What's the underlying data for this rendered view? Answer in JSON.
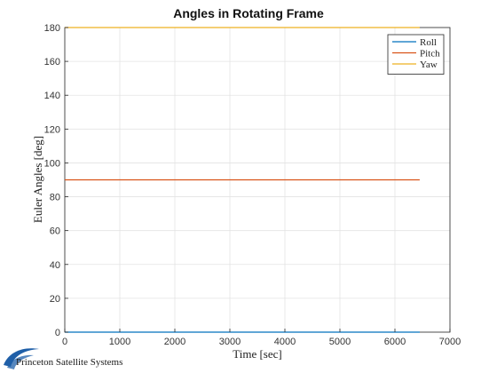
{
  "chart_data": {
    "type": "line",
    "title": "Angles in Rotating Frame",
    "xlabel": "Time [sec]",
    "ylabel": "Euler Angles [deg]",
    "xlim": [
      0,
      7000
    ],
    "ylim": [
      0,
      180
    ],
    "xticks": [
      0,
      1000,
      2000,
      3000,
      4000,
      5000,
      6000,
      7000
    ],
    "yticks": [
      0,
      20,
      40,
      60,
      80,
      100,
      120,
      140,
      160,
      180
    ],
    "grid": true,
    "legend_position": "top-right",
    "series": [
      {
        "name": "Roll",
        "color": "#0072BD",
        "x": [
          0,
          6450
        ],
        "y": [
          0,
          0
        ]
      },
      {
        "name": "Pitch",
        "color": "#D95319",
        "x": [
          0,
          6450
        ],
        "y": [
          90,
          90
        ]
      },
      {
        "name": "Yaw",
        "color": "#EDB120",
        "x": [
          0,
          6450
        ],
        "y": [
          180,
          180
        ]
      }
    ]
  },
  "logo": {
    "text": "Princeton Satellite Systems",
    "color": "#1f5fa8"
  }
}
